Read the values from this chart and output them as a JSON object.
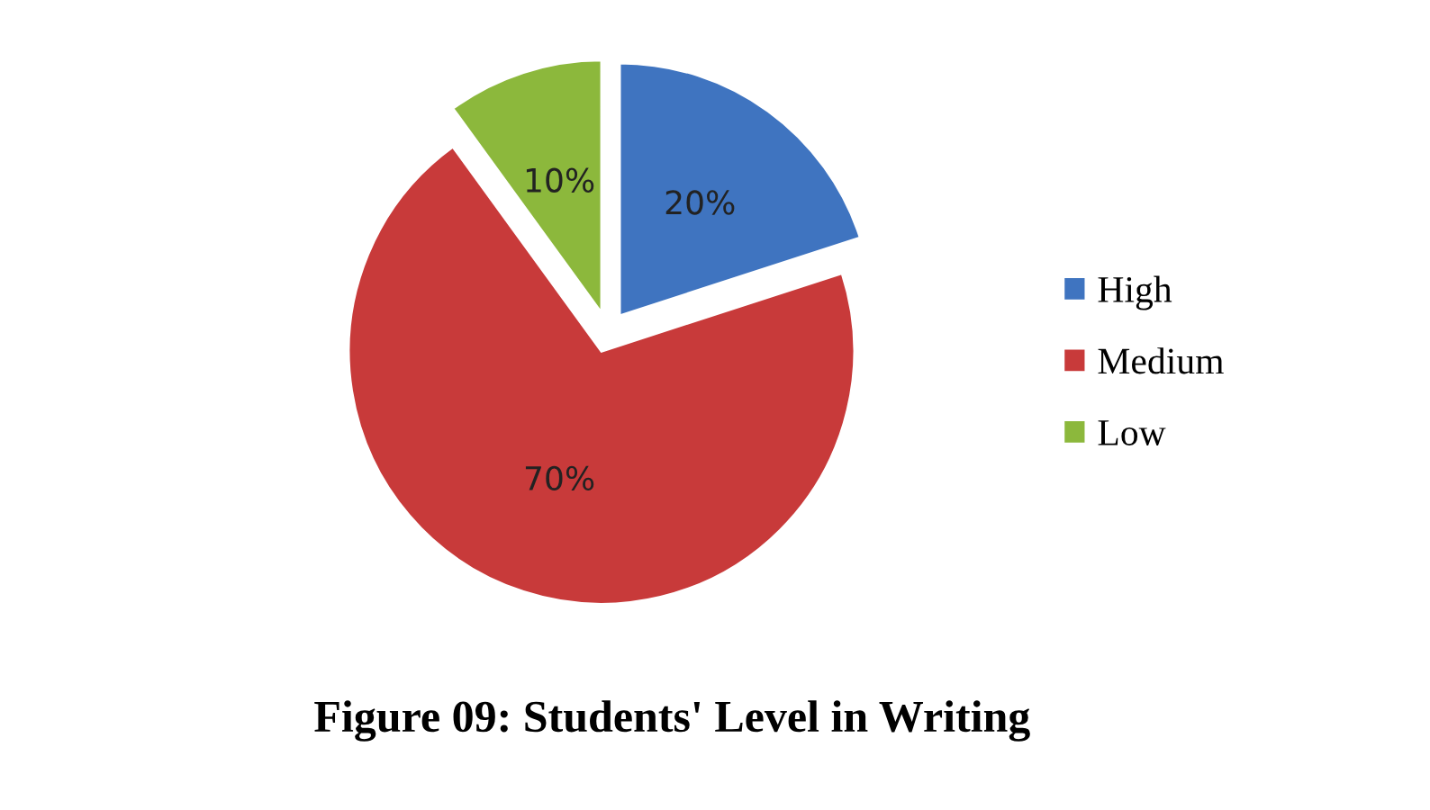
{
  "chart_data": {
    "type": "pie",
    "title": "Figure 09: Students' Level in Writing",
    "categories": [
      "High",
      "Medium",
      "Low"
    ],
    "values": [
      20,
      70,
      10
    ],
    "colors": [
      "#3f74c0",
      "#c83a3a",
      "#8cb83c"
    ],
    "value_labels": [
      "20%",
      "70%",
      "10%"
    ],
    "legend": "right"
  }
}
